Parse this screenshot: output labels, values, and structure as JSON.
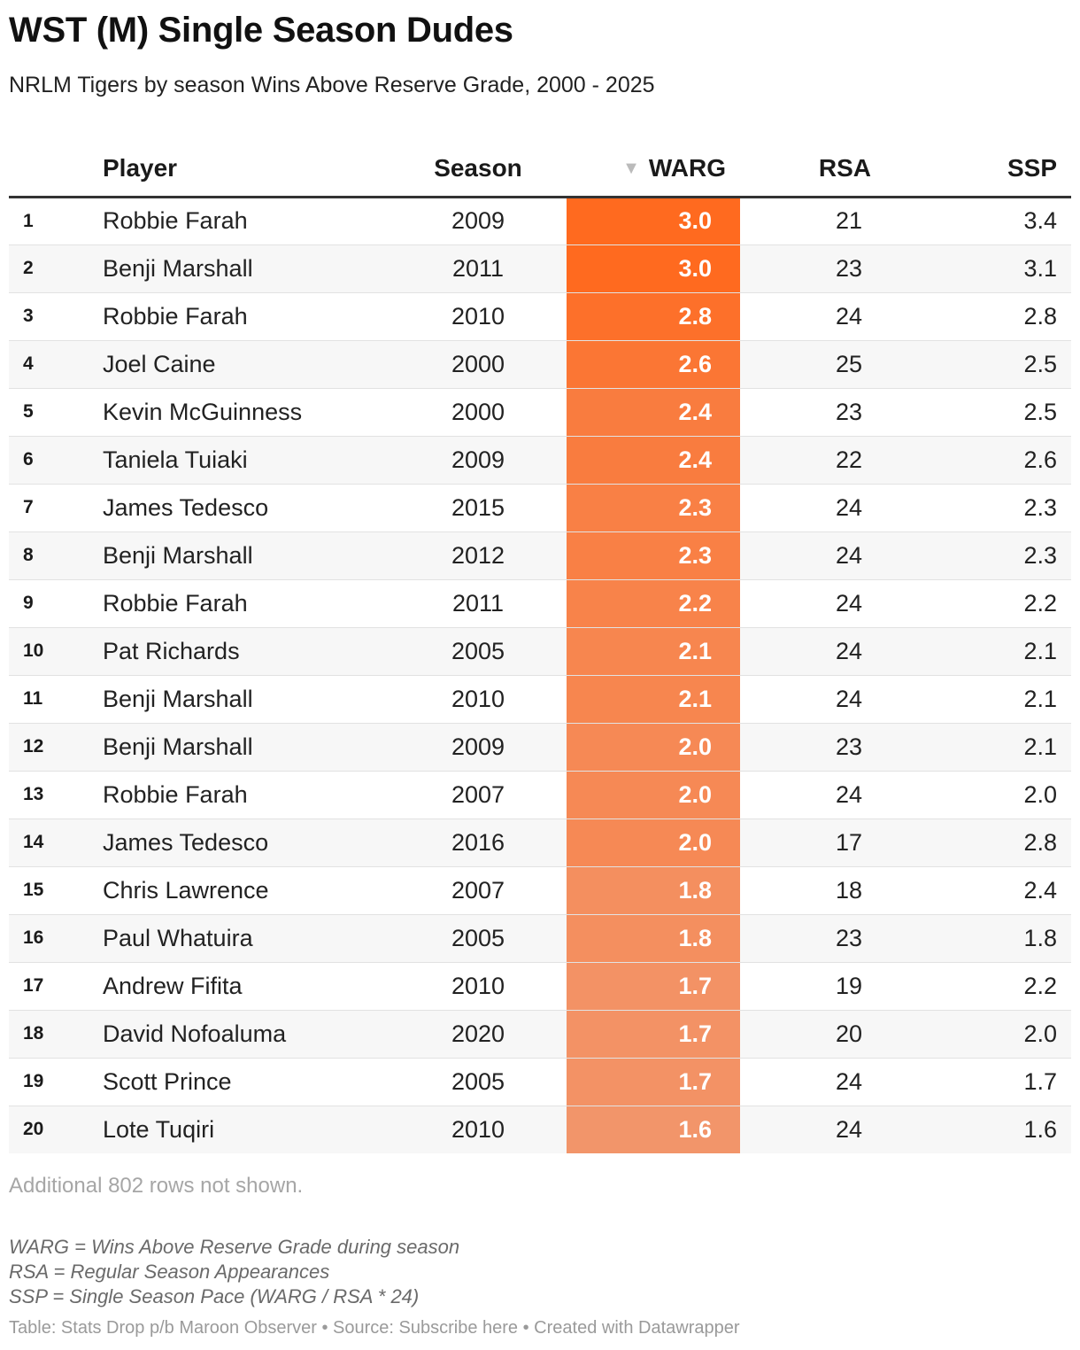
{
  "header": {
    "title": "WST (M) Single Season Dudes",
    "subtitle": "NRLM Tigers by season Wins Above Reserve Grade, 2000 - 2025"
  },
  "columns": {
    "rank": "",
    "player": "Player",
    "season": "Season",
    "warg": "WARG",
    "rsa": "RSA",
    "ssp": "SSP",
    "sort_arrow": "▼"
  },
  "colors": {
    "warg_high": "#ff6a1f",
    "warg_low": "#f2956a",
    "header_rule": "#333333"
  },
  "chart_data": {
    "type": "table",
    "sorted_by": "WARG",
    "sort_order": "descending",
    "rows": [
      {
        "rank": "1",
        "player": "Robbie Farah",
        "season": "2009",
        "warg": "3.0",
        "rsa": "21",
        "ssp": "3.4"
      },
      {
        "rank": "2",
        "player": "Benji Marshall",
        "season": "2011",
        "warg": "3.0",
        "rsa": "23",
        "ssp": "3.1"
      },
      {
        "rank": "3",
        "player": "Robbie Farah",
        "season": "2010",
        "warg": "2.8",
        "rsa": "24",
        "ssp": "2.8"
      },
      {
        "rank": "4",
        "player": "Joel Caine",
        "season": "2000",
        "warg": "2.6",
        "rsa": "25",
        "ssp": "2.5"
      },
      {
        "rank": "5",
        "player": "Kevin McGuinness",
        "season": "2000",
        "warg": "2.4",
        "rsa": "23",
        "ssp": "2.5"
      },
      {
        "rank": "6",
        "player": "Taniela Tuiaki",
        "season": "2009",
        "warg": "2.4",
        "rsa": "22",
        "ssp": "2.6"
      },
      {
        "rank": "7",
        "player": "James Tedesco",
        "season": "2015",
        "warg": "2.3",
        "rsa": "24",
        "ssp": "2.3"
      },
      {
        "rank": "8",
        "player": "Benji Marshall",
        "season": "2012",
        "warg": "2.3",
        "rsa": "24",
        "ssp": "2.3"
      },
      {
        "rank": "9",
        "player": "Robbie Farah",
        "season": "2011",
        "warg": "2.2",
        "rsa": "24",
        "ssp": "2.2"
      },
      {
        "rank": "10",
        "player": "Pat Richards",
        "season": "2005",
        "warg": "2.1",
        "rsa": "24",
        "ssp": "2.1"
      },
      {
        "rank": "11",
        "player": "Benji Marshall",
        "season": "2010",
        "warg": "2.1",
        "rsa": "24",
        "ssp": "2.1"
      },
      {
        "rank": "12",
        "player": "Benji Marshall",
        "season": "2009",
        "warg": "2.0",
        "rsa": "23",
        "ssp": "2.1"
      },
      {
        "rank": "13",
        "player": "Robbie Farah",
        "season": "2007",
        "warg": "2.0",
        "rsa": "24",
        "ssp": "2.0"
      },
      {
        "rank": "14",
        "player": "James Tedesco",
        "season": "2016",
        "warg": "2.0",
        "rsa": "17",
        "ssp": "2.8"
      },
      {
        "rank": "15",
        "player": "Chris Lawrence",
        "season": "2007",
        "warg": "1.8",
        "rsa": "18",
        "ssp": "2.4"
      },
      {
        "rank": "16",
        "player": "Paul Whatuira",
        "season": "2005",
        "warg": "1.8",
        "rsa": "23",
        "ssp": "1.8"
      },
      {
        "rank": "17",
        "player": "Andrew Fifita",
        "season": "2010",
        "warg": "1.7",
        "rsa": "19",
        "ssp": "2.2"
      },
      {
        "rank": "18",
        "player": "David Nofoaluma",
        "season": "2020",
        "warg": "1.7",
        "rsa": "20",
        "ssp": "2.0"
      },
      {
        "rank": "19",
        "player": "Scott Prince",
        "season": "2005",
        "warg": "1.7",
        "rsa": "24",
        "ssp": "1.7"
      },
      {
        "rank": "20",
        "player": "Lote Tuqiri",
        "season": "2010",
        "warg": "1.6",
        "rsa": "24",
        "ssp": "1.6"
      }
    ]
  },
  "notes": {
    "rows_hidden": "Additional 802 rows not shown.",
    "definitions": [
      "WARG = Wins Above Reserve Grade during season",
      "RSA = Regular Season Appearances",
      "SSP = Single Season Pace (WARG / RSA * 24)"
    ],
    "footer": "Table: Stats Drop p/b Maroon Observer • Source: Subscribe here • Created with Datawrapper"
  }
}
